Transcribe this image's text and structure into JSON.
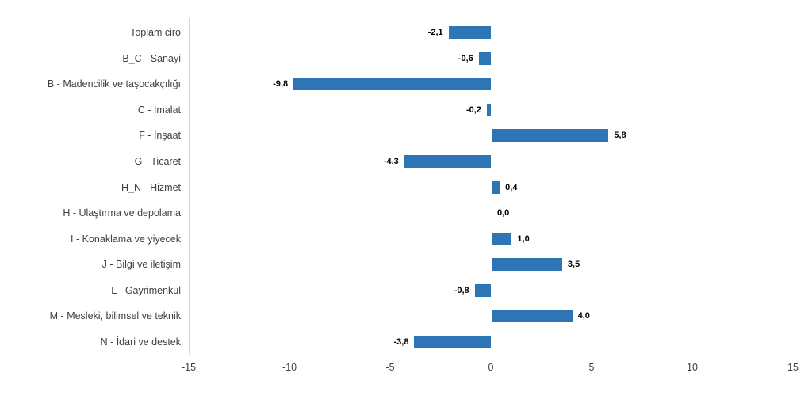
{
  "chart_data": {
    "type": "bar",
    "orientation": "horizontal",
    "categories": [
      "Toplam ciro",
      "B_C - Sanayi",
      "B - Madencilik ve taşocakçılığı",
      "C - İmalat",
      "F - İnşaat",
      "G - Ticaret",
      "H_N - Hizmet",
      "H - Ulaştırma ve depolama",
      "I - Konaklama ve yiyecek",
      "J - Bilgi ve iletişim",
      "L - Gayrimenkul",
      "M - Mesleki, bilimsel ve teknik",
      "N - İdari ve destek"
    ],
    "values": [
      -2.1,
      -0.6,
      -9.8,
      -0.2,
      5.8,
      -4.3,
      0.4,
      0.0,
      1.0,
      3.5,
      -0.8,
      4.0,
      -3.8
    ],
    "value_labels": [
      "-2,1",
      "-0,6",
      "-9,8",
      "-0,2",
      "5,8",
      "-4,3",
      "0,4",
      "0,0",
      "1,0",
      "3,5",
      "-0,8",
      "4,0",
      "-3,8"
    ],
    "xlim": [
      -15,
      15
    ],
    "x_ticks": [
      -15,
      -10,
      -5,
      0,
      5,
      10,
      15
    ],
    "x_tick_labels": [
      "-15",
      "-10",
      "-5",
      "0",
      "5",
      "10",
      "15"
    ],
    "bar_color": "#2E75B6",
    "axis_line_color": "#D9D9D9",
    "category_text_color": "#404040",
    "tick_text_color": "#404040",
    "data_label_color": "#000000",
    "grid": false,
    "legend": false
  }
}
